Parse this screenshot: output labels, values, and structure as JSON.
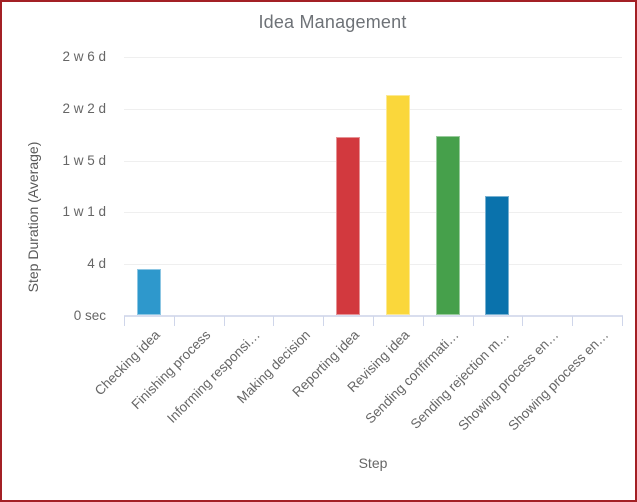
{
  "frame": {
    "border_color": "#A32025",
    "background": "#FFFFFF"
  },
  "chart_data": {
    "type": "bar",
    "title": "Idea Management",
    "xlabel": "Step",
    "ylabel": "Step Duration (Average)",
    "unit": "days",
    "categories": [
      "Checking idea",
      "Finishing process",
      "Informing responsi…",
      "Making decision",
      "Reporting idea",
      "Revising idea",
      "Sending confirmati…",
      "Sending rejection m…",
      "Showing process en…",
      "Showing process en…"
    ],
    "values": [
      3.6,
      0,
      0,
      0,
      13.8,
      17.1,
      13.9,
      9.3,
      0,
      0
    ],
    "bar_colors": [
      "#2E98CC",
      "",
      "",
      "",
      "#D2393E",
      "#FAD73B",
      "#46A04B",
      "#0A72AC",
      "",
      ""
    ],
    "y_ticks": [
      {
        "label": "0 sec",
        "days": 0
      },
      {
        "label": "4 d",
        "days": 4
      },
      {
        "label": "1 w 1 d",
        "days": 8
      },
      {
        "label": "1 w 5 d",
        "days": 12
      },
      {
        "label": "2 w 2 d",
        "days": 16
      },
      {
        "label": "2 w 6 d",
        "days": 20
      }
    ],
    "ylim": [
      0,
      20.5
    ],
    "grid": "horizontal",
    "legend": "none",
    "colors": {
      "title_text": "#6E7277",
      "axis_text": "#666666",
      "axis_line": "#D9DEEE",
      "grid_line": "#EFEFEF"
    }
  }
}
